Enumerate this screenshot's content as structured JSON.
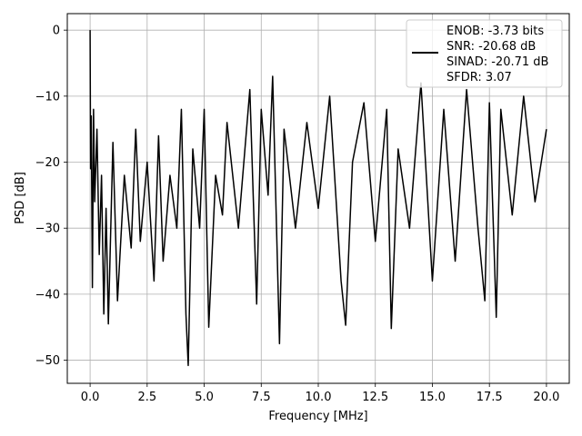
{
  "chart_data": {
    "type": "line",
    "xlabel": "Frequency [MHz]",
    "ylabel": "PSD [dB]",
    "xlim": [
      -1.0,
      21.0
    ],
    "ylim": [
      -53.5,
      2.5
    ],
    "xticks": [
      0.0,
      2.5,
      5.0,
      7.5,
      10.0,
      12.5,
      15.0,
      17.5,
      20.0
    ],
    "xtick_labels": [
      "0.0",
      "2.5",
      "5.0",
      "7.5",
      "10.0",
      "12.5",
      "15.0",
      "17.5",
      "20.0"
    ],
    "yticks": [
      0,
      -10,
      -20,
      -30,
      -40,
      -50
    ],
    "ytick_labels": [
      "0",
      "−10",
      "−20",
      "−30",
      "−40",
      "−50"
    ],
    "grid": true,
    "legend_position": "top-right",
    "legend": {
      "lines": [
        "ENOB: -3.73 bits",
        "SNR: -20.68 dB",
        "SINAD: -20.71 dB",
        "SFDR: 3.07"
      ]
    },
    "series": [
      {
        "color": "#000000",
        "x": [
          0.0,
          0.02,
          0.05,
          0.1,
          0.15,
          0.2,
          0.3,
          0.4,
          0.5,
          0.6,
          0.7,
          0.8,
          1.0,
          1.2,
          1.5,
          1.8,
          2.0,
          2.2,
          2.5,
          2.8,
          3.0,
          3.2,
          3.5,
          3.8,
          4.0,
          4.2,
          4.3,
          4.5,
          4.8,
          5.0,
          5.2,
          5.5,
          5.8,
          6.0,
          6.5,
          7.0,
          7.3,
          7.5,
          7.8,
          8.0,
          8.3,
          8.5,
          9.0,
          9.5,
          10.0,
          10.5,
          11.0,
          11.2,
          11.5,
          12.0,
          12.5,
          13.0,
          13.2,
          13.5,
          14.0,
          14.5,
          15.0,
          15.5,
          16.0,
          16.5,
          17.0,
          17.3,
          17.5,
          17.8,
          18.0,
          18.5,
          19.0,
          19.5,
          20.0
        ],
        "y": [
          0,
          -21,
          -13,
          -39,
          -12,
          -26,
          -15,
          -34,
          -22,
          -43,
          -27,
          -44.5,
          -17,
          -41,
          -22,
          -33,
          -15,
          -32,
          -20,
          -38,
          -16,
          -35,
          -22,
          -30,
          -12,
          -43,
          -50.8,
          -18,
          -30,
          -12,
          -45,
          -22,
          -28,
          -14,
          -30,
          -9,
          -41.5,
          -12,
          -25,
          -7,
          -47.5,
          -15,
          -30,
          -14,
          -27,
          -10,
          -38,
          -44.7,
          -20,
          -11,
          -32,
          -12,
          -45.2,
          -18,
          -30,
          -8,
          -38,
          -12,
          -35,
          -9,
          -30,
          -41,
          -11,
          -43.5,
          -12,
          -28,
          -10,
          -26,
          -15
        ]
      }
    ]
  }
}
